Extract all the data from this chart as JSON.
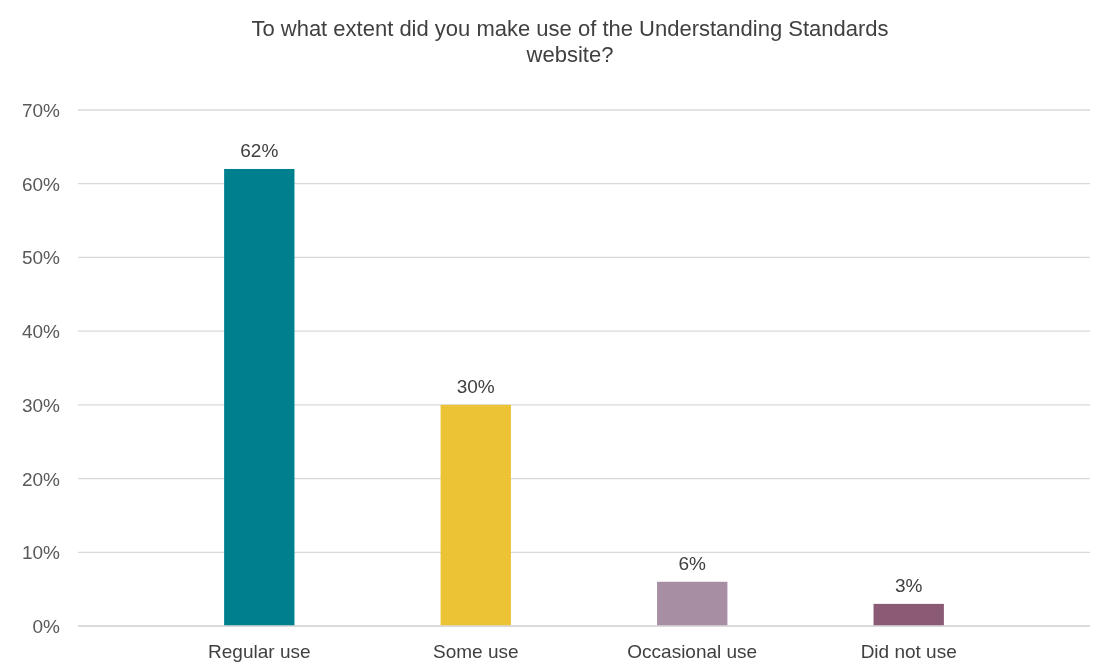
{
  "chart_data": {
    "type": "bar",
    "title": "To what extent did you make use of the Understanding Standards website?",
    "categories": [
      "Regular use",
      "Some use",
      "Occasional use",
      "Did not use"
    ],
    "values": [
      62,
      30,
      6,
      3
    ],
    "colors": [
      "#00808f",
      "#ebc334",
      "#a78ea3",
      "#8b5a74"
    ],
    "ylim": [
      0,
      70
    ],
    "yticks": [
      {
        "value": 0,
        "label": "0%"
      },
      {
        "value": 10,
        "label": "10%"
      },
      {
        "value": 20,
        "label": "20%"
      },
      {
        "value": 30,
        "label": "30%"
      },
      {
        "value": 40,
        "label": "40%"
      },
      {
        "value": 50,
        "label": "50%"
      },
      {
        "value": 60,
        "label": "60%"
      },
      {
        "value": 70,
        "label": "70%"
      }
    ],
    "value_labels": [
      "62%",
      "30%",
      "6%",
      "3%"
    ],
    "grid": "y"
  }
}
